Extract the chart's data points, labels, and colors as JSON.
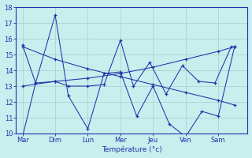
{
  "x_labels": [
    "Mar",
    "Dim",
    "Lun",
    "Mer",
    "Jeu",
    "Ven",
    "Sam"
  ],
  "ylim": [
    10,
    18
  ],
  "yticks": [
    10,
    11,
    12,
    13,
    14,
    15,
    16,
    17,
    18
  ],
  "xlabel": "Température (°c)",
  "line_color": "#2233AA",
  "bg_color": "#C8EEEE",
  "grid_color": "#A8CCCC",
  "series_a_x": [
    0,
    0.4,
    1.0,
    1.4,
    2.0,
    2.5,
    3.0,
    3.5,
    4.0,
    4.5,
    5.0,
    5.5,
    6.0,
    6.5
  ],
  "series_a_y": [
    9.8,
    13.2,
    17.5,
    12.4,
    10.3,
    13.8,
    13.9,
    11.1,
    13.0,
    10.6,
    9.8,
    11.4,
    11.1,
    15.5
  ],
  "series_b_x": [
    0,
    0.4,
    1.0,
    1.4,
    2.0,
    2.5,
    3.0,
    3.4,
    3.9,
    4.4,
    4.9,
    5.4,
    5.9,
    6.4
  ],
  "series_b_y": [
    15.6,
    13.2,
    13.3,
    13.0,
    13.0,
    13.1,
    15.9,
    13.0,
    14.5,
    12.5,
    14.3,
    13.3,
    13.2,
    15.5
  ],
  "series_c_x": [
    0,
    1,
    2,
    3,
    4,
    5,
    6,
    6.5
  ],
  "series_c_y": [
    13.0,
    13.3,
    13.5,
    13.8,
    14.2,
    14.7,
    15.2,
    15.5
  ],
  "series_d_x": [
    0,
    1,
    2,
    3,
    4,
    5,
    6,
    6.5
  ],
  "series_d_y": [
    15.5,
    14.7,
    14.1,
    13.6,
    13.1,
    12.6,
    12.1,
    11.8
  ],
  "xtick_positions": [
    0,
    1,
    2,
    3,
    4,
    5,
    6
  ],
  "xlim": [
    -0.2,
    6.9
  ]
}
